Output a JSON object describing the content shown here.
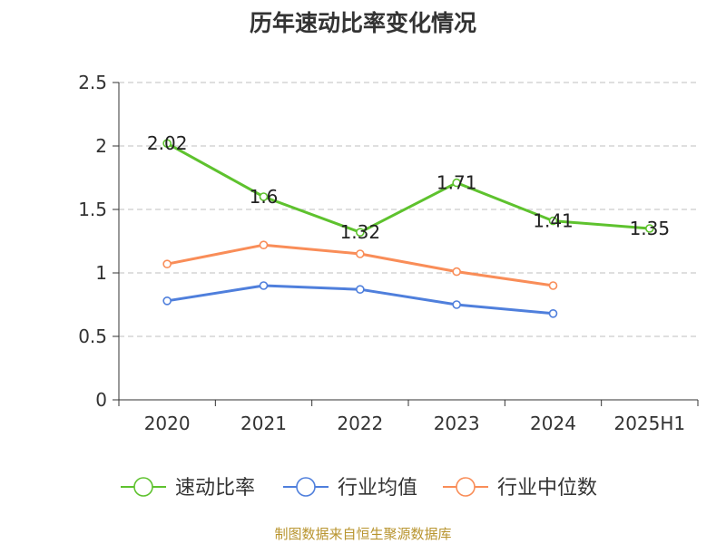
{
  "chart_data": {
    "type": "line",
    "title": "历年速动比率变化情况",
    "categories": [
      "2020",
      "2021",
      "2022",
      "2023",
      "2024",
      "2025H1"
    ],
    "y_ticks": [
      "0",
      "0.5",
      "1",
      "1.5",
      "2",
      "2.5"
    ],
    "ylim": [
      0,
      2.5
    ],
    "grid": true,
    "legend_position": "bottom",
    "series": [
      {
        "name": "速动比率",
        "color": "#5ec22e",
        "values": [
          2.02,
          1.6,
          1.32,
          1.71,
          1.41,
          1.35
        ],
        "labels": [
          "2.02",
          "1.6",
          "1.32",
          "1.71",
          "1.41",
          "1.35"
        ]
      },
      {
        "name": "行业均值",
        "color": "#4f7fdc",
        "values": [
          0.78,
          0.9,
          0.87,
          0.75,
          0.68,
          null
        ]
      },
      {
        "name": "行业中位数",
        "color": "#f98d58",
        "values": [
          1.07,
          1.22,
          1.15,
          1.01,
          0.9,
          null
        ]
      }
    ]
  },
  "footer": {
    "source": "制图数据来自恒生聚源数据库"
  }
}
